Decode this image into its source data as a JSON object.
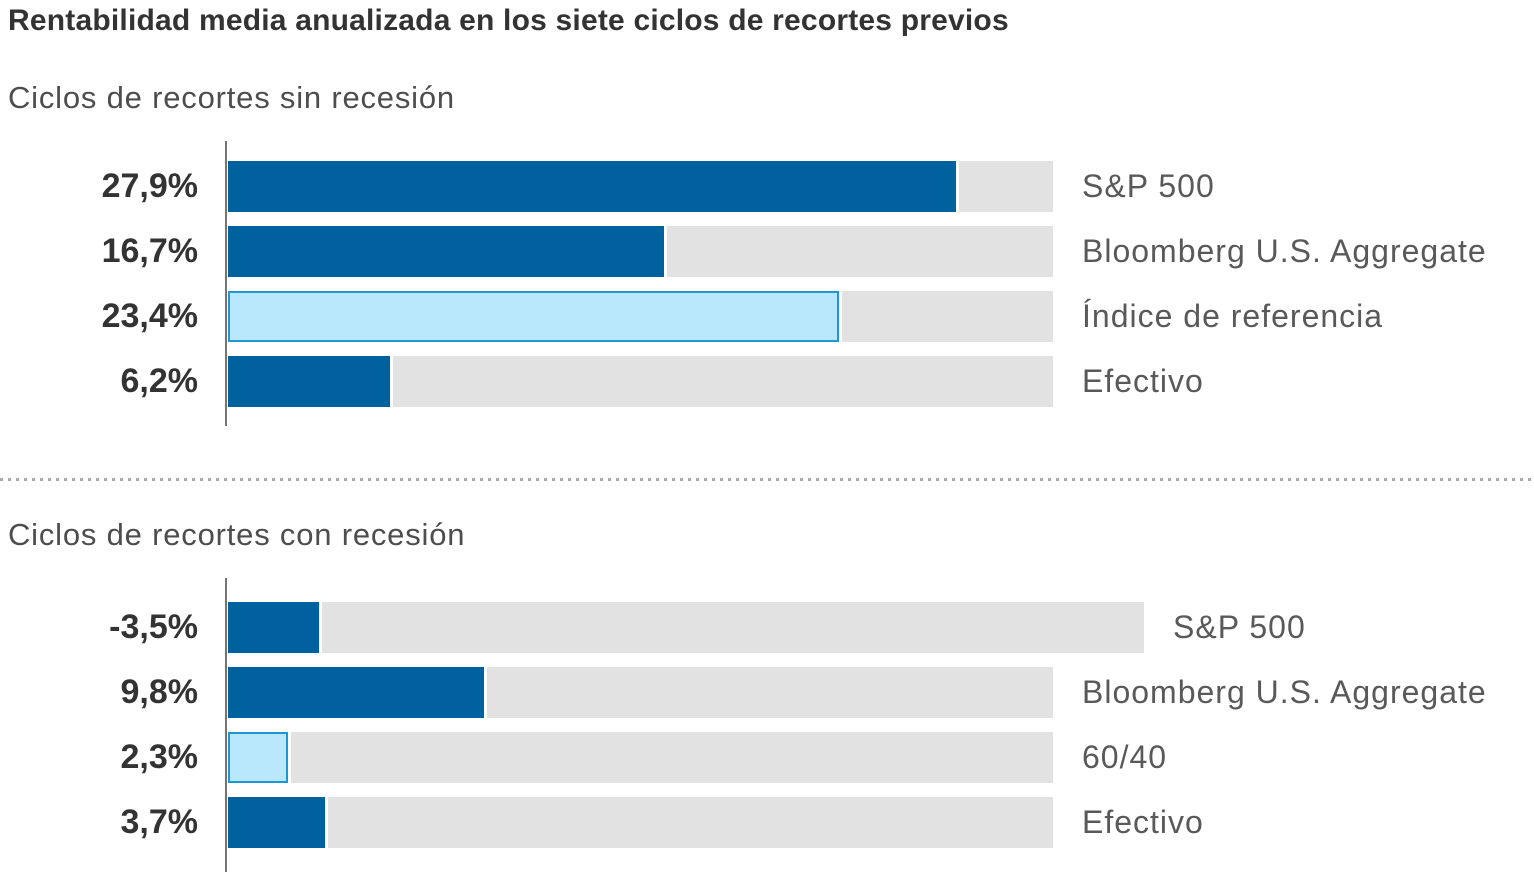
{
  "header": {
    "title": "Rentabilidad media anualizada en los siete ciclos de recortes previos"
  },
  "colors": {
    "dark_blue_bar": "#00619f",
    "light_blue_bar_fill": "#b9e8fc",
    "light_blue_bar_border": "#2196d4",
    "track_gray": "#e2e2e2",
    "axis_gray": "#757575",
    "title_text": "#333333",
    "subtitle_text": "#4d4d4d",
    "value_text": "#333333",
    "category_text": "#595959",
    "divider_dots": "#ababab"
  },
  "chart_data": [
    {
      "type": "bar",
      "title": "Ciclos de recortes sin recesión",
      "orientation": "horizontal",
      "categories": [
        "S&P 500",
        "Bloomberg U.S. Aggregate",
        "Índice de referencia",
        "Efectivo"
      ],
      "values": [
        27.9,
        16.7,
        23.4,
        6.2
      ],
      "value_labels": [
        "27,9%",
        "16,7%",
        "23,4%",
        "6,2%"
      ],
      "bar_styles": [
        "dark",
        "dark",
        "light",
        "dark"
      ],
      "xlim": [
        0,
        31.6
      ],
      "grid": false,
      "legend": "none",
      "value_label_position": "left",
      "category_label_position": "right"
    },
    {
      "type": "bar",
      "title": "Ciclos de recortes con recesión",
      "orientation": "horizontal",
      "categories": [
        "S&P 500",
        "Bloomberg U.S. Aggregate",
        "60/40",
        "Efectivo"
      ],
      "values": [
        -3.5,
        9.8,
        2.3,
        3.7
      ],
      "value_labels": [
        "-3,5%",
        "9,8%",
        "2,3%",
        "3,7%"
      ],
      "bar_styles": [
        "dark",
        "dark",
        "light",
        "dark"
      ],
      "xlim": [
        0,
        31.6
      ],
      "grid": false,
      "legend": "none",
      "value_label_position": "left",
      "category_label_position": "right"
    }
  ]
}
